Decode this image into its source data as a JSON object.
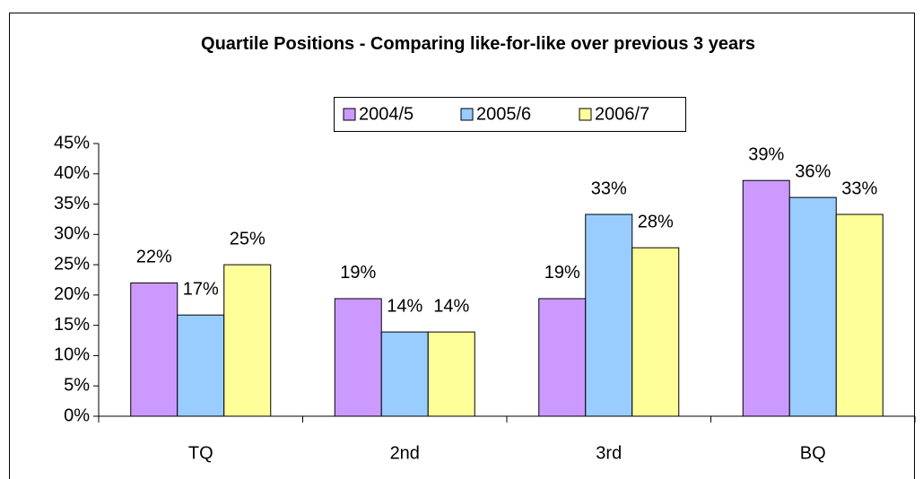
{
  "chart_data": {
    "type": "bar",
    "title": "Quartile Positions - Comparing like-for-like over previous 3 years",
    "categories": [
      "TQ",
      "2nd",
      "3rd",
      "BQ"
    ],
    "series": [
      {
        "name": "2004/5",
        "color": "#cc99ff",
        "values": [
          22,
          19.4,
          19.4,
          38.9
        ],
        "value_labels": [
          "22%",
          "19%",
          "19%",
          "39%"
        ]
      },
      {
        "name": "2005/6",
        "color": "#99ccff",
        "values": [
          16.7,
          13.9,
          33.3,
          36.1
        ],
        "value_labels": [
          "17%",
          "14%",
          "33%",
          "36%"
        ]
      },
      {
        "name": "2006/7",
        "color": "#ffff99",
        "values": [
          25,
          13.9,
          27.8,
          33.3
        ],
        "value_labels": [
          "25%",
          "14%",
          "28%",
          "33%"
        ]
      }
    ],
    "ylim": [
      0,
      45
    ],
    "yticks": [
      {
        "value": 0,
        "label": "0%"
      },
      {
        "value": 5,
        "label": "5%"
      },
      {
        "value": 10,
        "label": "10%"
      },
      {
        "value": 15,
        "label": "15%"
      },
      {
        "value": 20,
        "label": "20%"
      },
      {
        "value": 25,
        "label": "25%"
      },
      {
        "value": 30,
        "label": "30%"
      },
      {
        "value": 35,
        "label": "35%"
      },
      {
        "value": 40,
        "label": "40%"
      },
      {
        "value": 45,
        "label": "45%"
      }
    ],
    "legend": "top",
    "grid": false
  }
}
